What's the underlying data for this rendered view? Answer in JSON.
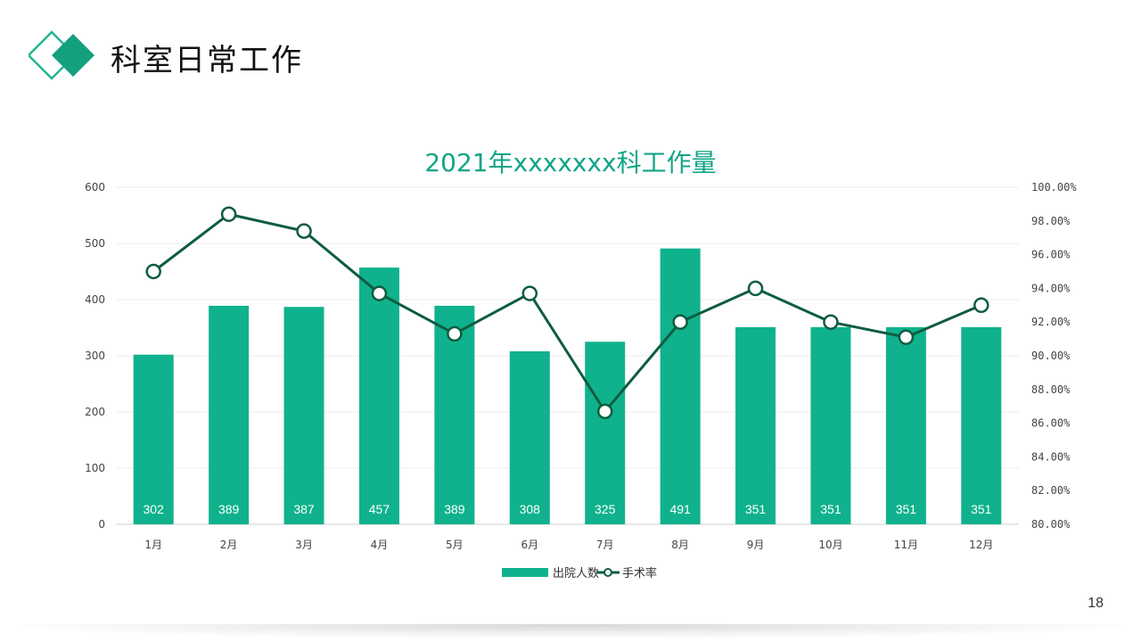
{
  "page": {
    "title": "科室日常工作",
    "page_number": "18"
  },
  "colors": {
    "accent": "#11a586",
    "bar": "#0fb28c",
    "line": "#0e5c41",
    "logo_dark": "#13a07e",
    "logo_outline": "#23b493"
  },
  "chart_data": {
    "type": "bar",
    "title": "2021年xxxxxxx科工作量",
    "categories": [
      "1月",
      "2月",
      "3月",
      "4月",
      "5月",
      "6月",
      "7月",
      "8月",
      "9月",
      "10月",
      "11月",
      "12月"
    ],
    "series": [
      {
        "name": "出院人数",
        "type": "bar",
        "axis": "left",
        "values": [
          302,
          389,
          387,
          457,
          389,
          308,
          325,
          491,
          351,
          351,
          351,
          351
        ]
      },
      {
        "name": "手术率",
        "type": "line",
        "axis": "right",
        "values": [
          95.0,
          98.4,
          97.4,
          93.7,
          91.3,
          93.7,
          86.7,
          92.0,
          94.0,
          92.0,
          91.1,
          93.0
        ]
      }
    ],
    "left_axis": {
      "min": 0,
      "max": 600,
      "ticks": [
        "0",
        "100",
        "200",
        "300",
        "400",
        "500",
        "600"
      ]
    },
    "right_axis": {
      "min": 80,
      "max": 100,
      "ticks": [
        "80.00%",
        "82.00%",
        "84.00%",
        "86.00%",
        "88.00%",
        "90.00%",
        "92.00%",
        "94.00%",
        "96.00%",
        "98.00%",
        "100.00%"
      ]
    },
    "grid": true,
    "data_labels": "inside-bottom",
    "legend": "bottom"
  }
}
